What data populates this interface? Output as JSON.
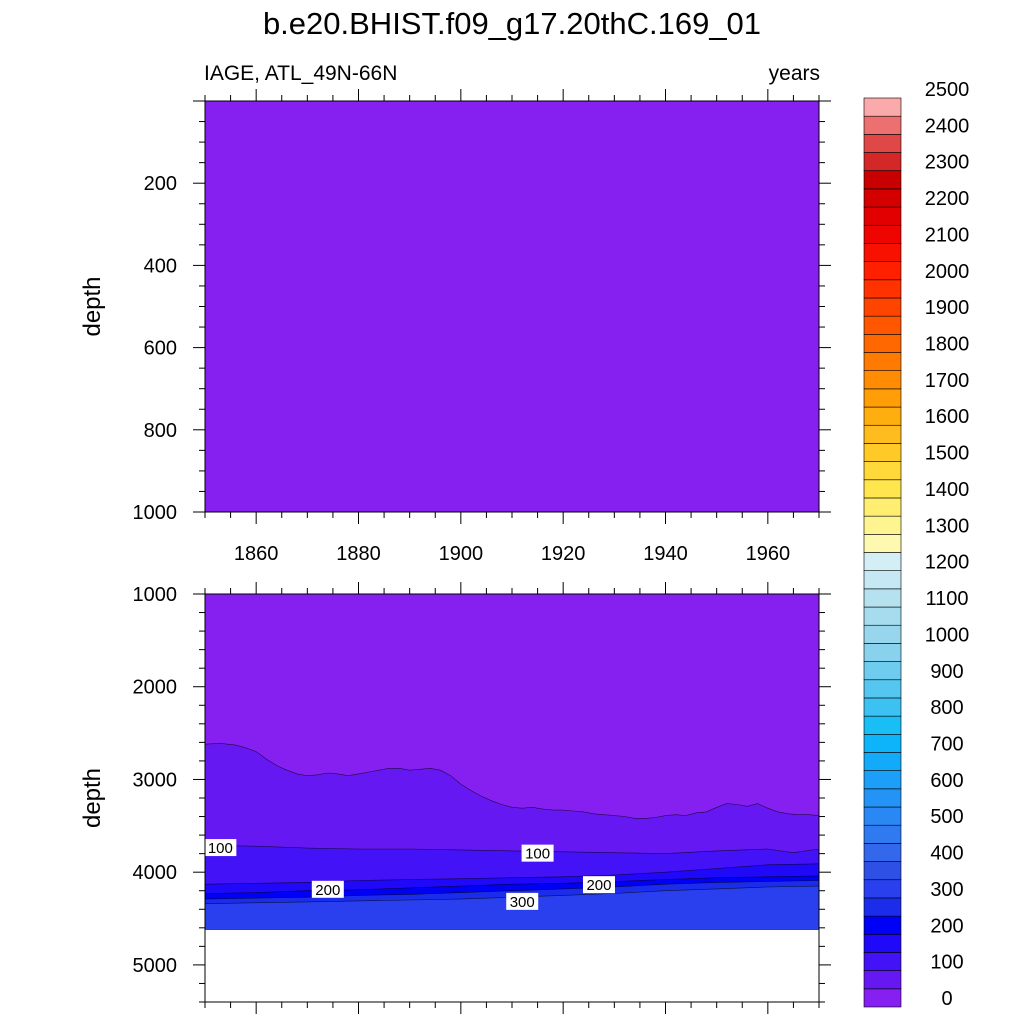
{
  "title": "b.e20.BHIST.f09_g17.20thC.169_01",
  "left_string": "IAGE, ATL_49N-66N",
  "right_string": "years",
  "chart_data": {
    "type": "heatmap",
    "title": "b.e20.BHIST.f09_g17.20thC.169_01",
    "variable": "IAGE, ATL_49N-66N",
    "units": "years",
    "xlabel": "",
    "ylabel": "depth",
    "xlim": [
      1850,
      1970
    ],
    "x_ticks": [
      1860,
      1880,
      1900,
      1920,
      1940,
      1960
    ],
    "panels": [
      {
        "name": "upper",
        "ylim": [
          0,
          1000
        ],
        "y_ticks": [
          200,
          400,
          600,
          800,
          1000
        ],
        "y_reversed": true,
        "fill_value_range": [
          0,
          50
        ]
      },
      {
        "name": "lower",
        "ylim": [
          1000,
          5400
        ],
        "y_ticks": [
          1000,
          2000,
          3000,
          4000,
          5000
        ],
        "y_reversed": true,
        "missing_below_depth": 4620,
        "contours": [
          {
            "level": 50,
            "x": [
              1850,
              1853,
              1856,
              1858,
              1860,
              1862,
              1864,
              1866,
              1868,
              1870,
              1872,
              1874,
              1876,
              1878,
              1880,
              1882,
              1884,
              1886,
              1888,
              1890,
              1892,
              1894,
              1896,
              1898,
              1900,
              1902,
              1904,
              1906,
              1908,
              1910,
              1912,
              1914,
              1916,
              1918,
              1920,
              1922,
              1924,
              1926,
              1928,
              1930,
              1932,
              1934,
              1936,
              1938,
              1940,
              1942,
              1944,
              1946,
              1948,
              1950,
              1952,
              1954,
              1956,
              1958,
              1960,
              1962,
              1964,
              1966,
              1968,
              1970
            ],
            "depth": [
              2620,
              2610,
              2630,
              2660,
              2700,
              2780,
              2850,
              2900,
              2940,
              2960,
              2950,
              2930,
              2940,
              2960,
              2940,
              2920,
              2900,
              2880,
              2880,
              2900,
              2890,
              2880,
              2900,
              2960,
              3050,
              3120,
              3180,
              3230,
              3270,
              3300,
              3310,
              3300,
              3320,
              3330,
              3330,
              3340,
              3350,
              3370,
              3380,
              3390,
              3400,
              3420,
              3420,
              3410,
              3390,
              3380,
              3390,
              3360,
              3350,
              3300,
              3260,
              3270,
              3290,
              3260,
              3310,
              3350,
              3370,
              3380,
              3380,
              3390
            ]
          },
          {
            "level": 100,
            "x": [
              1850,
              1860,
              1870,
              1880,
              1890,
              1900,
              1910,
              1920,
              1930,
              1940,
              1950,
              1960,
              1965,
              1970
            ],
            "depth": [
              3710,
              3720,
              3740,
              3750,
              3750,
              3760,
              3770,
              3780,
              3790,
              3800,
              3770,
              3750,
              3790,
              3750
            ]
          },
          {
            "level": 150,
            "x": [
              1850,
              1860,
              1870,
              1880,
              1890,
              1900,
              1910,
              1920,
              1930,
              1940,
              1950,
              1960,
              1970
            ],
            "depth": [
              4130,
              4120,
              4110,
              4090,
              4080,
              4070,
              4060,
              4050,
              4030,
              4000,
              3960,
              3920,
              3910
            ]
          },
          {
            "level": 200,
            "x": [
              1850,
              1860,
              1870,
              1880,
              1890,
              1900,
              1910,
              1920,
              1930,
              1940,
              1950,
              1960,
              1970
            ],
            "depth": [
              4230,
              4220,
              4200,
              4190,
              4170,
              4150,
              4130,
              4120,
              4100,
              4080,
              4060,
              4050,
              4040
            ]
          },
          {
            "level": 250,
            "x": [
              1850,
              1860,
              1870,
              1880,
              1890,
              1900,
              1910,
              1920,
              1930,
              1940,
              1950,
              1960,
              1970
            ],
            "depth": [
              4290,
              4280,
              4270,
              4250,
              4240,
              4220,
              4200,
              4180,
              4160,
              4130,
              4110,
              4100,
              4090
            ]
          },
          {
            "level": 300,
            "x": [
              1850,
              1860,
              1870,
              1880,
              1890,
              1900,
              1910,
              1920,
              1930,
              1940,
              1950,
              1960,
              1970
            ],
            "depth": [
              4340,
              4330,
              4320,
              4310,
              4300,
              4290,
              4270,
              4250,
              4230,
              4200,
              4180,
              4160,
              4150
            ]
          }
        ],
        "contour_labels": [
          {
            "text": "100",
            "x": 1853,
            "depth": 3740
          },
          {
            "text": "100",
            "x": 1915,
            "depth": 3800
          },
          {
            "text": "200",
            "x": 1874,
            "depth": 4190
          },
          {
            "text": "200",
            "x": 1927,
            "depth": 4140
          },
          {
            "text": "300",
            "x": 1912,
            "depth": 4320
          }
        ]
      }
    ],
    "colorbar": {
      "levels": [
        0,
        50,
        100,
        150,
        200,
        250,
        300,
        350,
        400,
        450,
        500,
        550,
        600,
        650,
        700,
        750,
        800,
        850,
        900,
        950,
        1000,
        1050,
        1100,
        1150,
        1200,
        1250,
        1300,
        1350,
        1400,
        1450,
        1500,
        1550,
        1600,
        1650,
        1700,
        1750,
        1800,
        1850,
        1900,
        1950,
        2000,
        2050,
        2100,
        2150,
        2200,
        2250,
        2300,
        2350,
        2400,
        2450,
        2500
      ],
      "labels": [
        "0",
        "100",
        "200",
        "300",
        "400",
        "500",
        "600",
        "700",
        "800",
        "900",
        "1000",
        "1100",
        "1200",
        "1300",
        "1400",
        "1500",
        "1600",
        "1700",
        "1800",
        "1900",
        "2000",
        "2100",
        "2200",
        "2300",
        "2400",
        "2500"
      ],
      "colors": [
        "#8520F0",
        "#6618F2",
        "#4312F6",
        "#2008F8",
        "#0000F6",
        "#1B2CEA",
        "#2A40EE",
        "#2F50E4",
        "#3468EC",
        "#2F7AF0",
        "#2A88F5",
        "#2493F6",
        "#1C9FF8",
        "#12AAF9",
        "#0DB4FA",
        "#18BEF4",
        "#3CC2F2",
        "#55C6EF",
        "#6ECDEF",
        "#88D2EE",
        "#98D6EE",
        "#A6DCEE",
        "#B6E2F0",
        "#C6E8F4",
        "#D4EEF6",
        "#FFF8B0",
        "#FFF590",
        "#FFEE70",
        "#FFE54E",
        "#FFD83A",
        "#FFCA28",
        "#FFBC1E",
        "#FFAE10",
        "#FF9E06",
        "#FF8C02",
        "#FF7A00",
        "#FF6800",
        "#FF5600",
        "#FF4400",
        "#FF3200",
        "#FF2000",
        "#F81000",
        "#EE0400",
        "#E20000",
        "#D40000",
        "#C80000",
        "#D42828",
        "#E04848",
        "#EC7070",
        "#FAAAAA"
      ]
    }
  }
}
